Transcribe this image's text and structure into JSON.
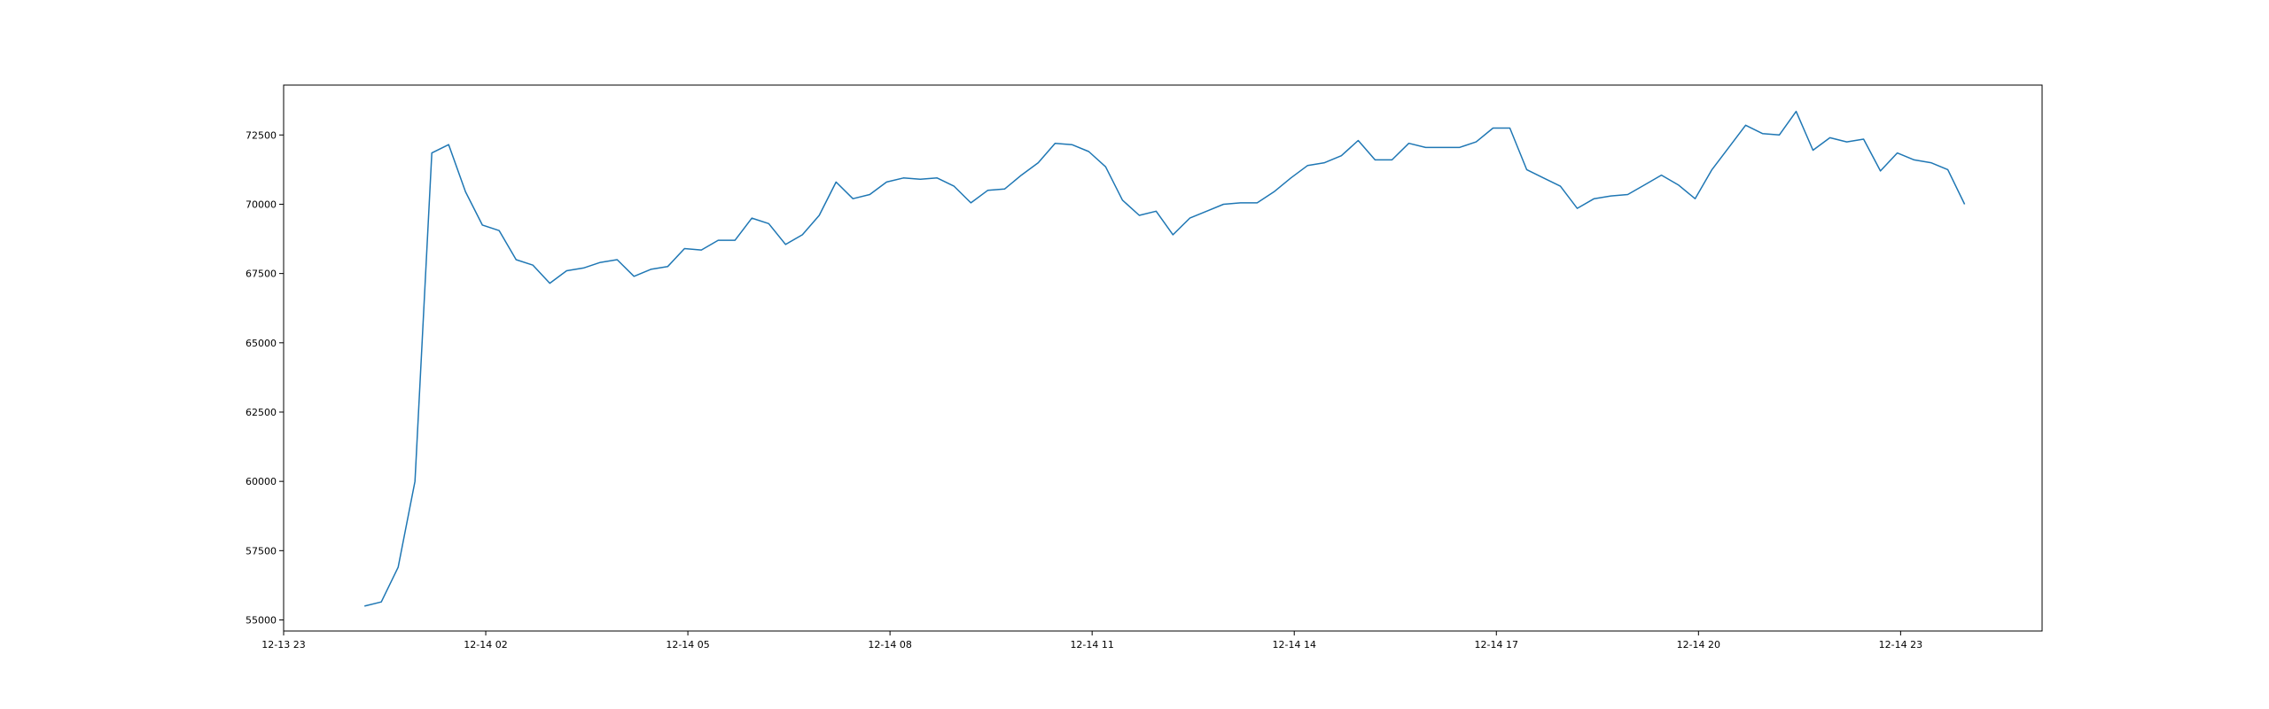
{
  "chart_data": {
    "type": "line",
    "title": "",
    "xlabel": "",
    "ylabel": "",
    "x_ticks": [
      "12-13 23",
      "12-14 02",
      "12-14 05",
      "12-14 08",
      "12-14 11",
      "12-14 14",
      "12-14 17",
      "12-14 20",
      "12-14 23"
    ],
    "y_ticks": [
      55000,
      57500,
      60000,
      62500,
      65000,
      67500,
      70000,
      72500
    ],
    "xlim_hours": [
      0,
      26.1
    ],
    "ylim": [
      54600,
      74300
    ],
    "grid": false,
    "legend": "none",
    "series": [
      {
        "color": "#1f77b4",
        "x_hours": [
          1.2,
          1.45,
          1.7,
          1.95,
          2.2,
          2.45,
          2.7,
          2.95,
          3.2,
          3.45,
          3.7,
          3.95,
          4.2,
          4.45,
          4.7,
          4.95,
          5.2,
          5.45,
          5.7,
          5.95,
          6.2,
          6.45,
          6.7,
          6.95,
          7.2,
          7.45,
          7.7,
          7.95,
          8.2,
          8.45,
          8.7,
          8.95,
          9.2,
          9.45,
          9.7,
          9.95,
          10.2,
          10.45,
          10.7,
          10.95,
          11.2,
          11.45,
          11.7,
          11.95,
          12.2,
          12.45,
          12.7,
          12.95,
          13.2,
          13.45,
          13.7,
          13.95,
          14.2,
          14.45,
          14.7,
          14.95,
          15.2,
          15.45,
          15.7,
          15.95,
          16.2,
          16.45,
          16.7,
          16.95,
          17.2,
          17.45,
          17.7,
          17.95,
          18.2,
          18.45,
          18.7,
          18.95,
          19.2,
          19.45,
          19.7,
          19.95,
          20.2,
          20.45,
          20.7,
          20.95,
          21.2,
          21.45,
          21.7,
          21.95,
          22.2,
          22.45,
          22.7,
          22.95,
          23.2,
          23.45,
          23.7,
          23.95,
          24.2,
          24.45,
          24.7,
          24.95
        ],
        "y": [
          55500,
          55650,
          56900,
          60000,
          71850,
          72150,
          70450,
          69250,
          69050,
          68000,
          67800,
          67150,
          67600,
          67700,
          67900,
          68000,
          67400,
          67650,
          67750,
          68400,
          68350,
          68700,
          68700,
          69500,
          69300,
          68550,
          68900,
          69600,
          70800,
          70200,
          70350,
          70800,
          70950,
          70900,
          70950,
          70650,
          70050,
          70500,
          70550,
          71050,
          71500,
          72200,
          72150,
          71900,
          71350,
          70150,
          69600,
          69750,
          68900,
          69500,
          69750,
          70000,
          70050,
          70050,
          70450,
          70950,
          71400,
          71500,
          71750,
          72300,
          71600,
          71600,
          72200,
          72050,
          72050,
          72050,
          72250,
          72750,
          72750,
          71250,
          70950,
          70650,
          69850,
          70200,
          70300,
          70350,
          70700,
          71050,
          70700,
          70200,
          71250,
          72050,
          72850,
          72550,
          72500,
          73350,
          71950,
          72400,
          72250,
          72350,
          71200,
          71850,
          71600,
          71500,
          71250,
          70000
        ]
      }
    ]
  }
}
